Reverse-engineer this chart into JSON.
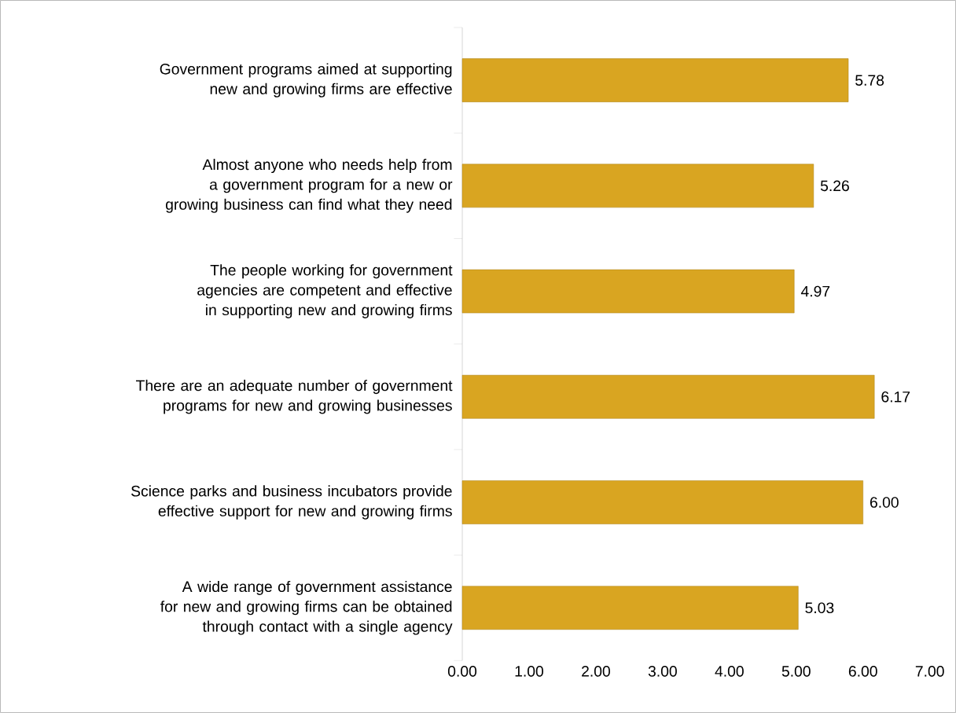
{
  "chart_data": {
    "type": "bar",
    "orientation": "horizontal",
    "categories": [
      "Government programs aimed at supporting new and growing firms are effective",
      "Almost anyone who needs help from a government program for a new or growing business can find what they need",
      "The people working for government agencies are competent and effective in supporting new and growing firms",
      "There are an adequate number of government programs for new and growing businesses",
      "Science parks and business incubators provide effective support for new and growing firms",
      "A wide range of government assistance for new and growing firms can be obtained through contact with a single agency"
    ],
    "values": [
      5.78,
      5.26,
      4.97,
      6.17,
      6.0,
      5.03
    ],
    "value_labels": [
      "5.78",
      "5.26",
      "4.97",
      "6.17",
      "6.00",
      "5.03"
    ],
    "color": "#d9a521",
    "xlim": [
      0,
      7
    ],
    "xticks": [
      {
        "value": 0,
        "label": "0.00"
      },
      {
        "value": 1,
        "label": "1.00"
      },
      {
        "value": 2,
        "label": "2.00"
      },
      {
        "value": 3,
        "label": "3.00"
      },
      {
        "value": 4,
        "label": "4.00"
      },
      {
        "value": 5,
        "label": "5.00"
      },
      {
        "value": 6,
        "label": "6.00"
      },
      {
        "value": 7,
        "label": "7.00"
      }
    ]
  }
}
